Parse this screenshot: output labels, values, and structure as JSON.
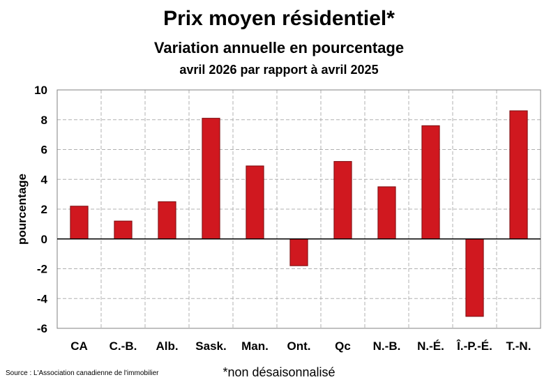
{
  "chart_data": {
    "type": "bar",
    "title": "Prix moyen résidentiel*",
    "subtitle": "Variation annuelle en pourcentage",
    "subtitle2": "avril 2026 par rapport à avril 2025",
    "ylabel": "pourcentage",
    "xlabel": "",
    "categories": [
      "CA",
      "C.-B.",
      "Alb.",
      "Sask.",
      "Man.",
      "Ont.",
      "Qc",
      "N.-B.",
      "N.-É.",
      "Î.-P.-É.",
      "T.-N."
    ],
    "values": [
      2.2,
      1.2,
      2.5,
      8.1,
      4.9,
      -1.8,
      5.2,
      3.5,
      7.6,
      -5.2,
      8.6
    ],
    "ylim": [
      -6,
      10
    ],
    "yticks": [
      -6,
      -4,
      -2,
      0,
      2,
      4,
      6,
      8,
      10
    ],
    "grid": true,
    "bar_color": "#d0181f",
    "footnote": "*non désaisonnalisé",
    "source": "Source : L'Association canadienne de l'immobilier"
  }
}
